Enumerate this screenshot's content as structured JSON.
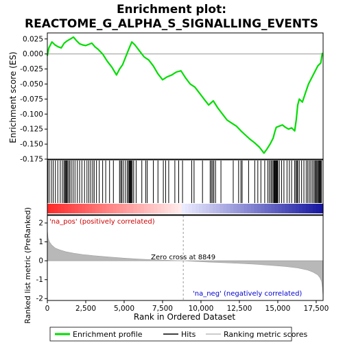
{
  "title_line1": "Enrichment plot:",
  "title_line2": "REACTOME_G_ALPHA_S_SIGNALLING_EVENTS",
  "chart_data": {
    "type": "line",
    "top_panel": {
      "ylabel": "Enrichment score (ES)",
      "ylim": [
        -0.175,
        0.035
      ],
      "yticks": [
        0.025,
        0.0,
        -0.025,
        -0.05,
        -0.075,
        -0.1,
        -0.125,
        -0.15,
        -0.175
      ],
      "ytick_labels": [
        "0.025",
        "0.000",
        "-0.025",
        "-0.050",
        "-0.075",
        "-0.100",
        "-0.125",
        "-0.150",
        "-0.175"
      ],
      "series_name": "Enrichment profile",
      "color": "#00dd00",
      "x": [
        0,
        100,
        300,
        500,
        700,
        900,
        1100,
        1300,
        1500,
        1700,
        1900,
        2100,
        2300,
        2500,
        2700,
        2900,
        3100,
        3300,
        3600,
        3900,
        4200,
        4500,
        4700,
        4900,
        5100,
        5300,
        5500,
        5700,
        6000,
        6300,
        6600,
        6900,
        7200,
        7500,
        7800,
        8100,
        8400,
        8700,
        9000,
        9300,
        9600,
        9900,
        10200,
        10500,
        10800,
        11100,
        11400,
        11700,
        12000,
        12300,
        12600,
        12900,
        13200,
        13500,
        13800,
        14100,
        14300,
        14500,
        14700,
        14800,
        14900,
        15100,
        15300,
        15500,
        15700,
        15900,
        16100,
        16200,
        16300,
        16400,
        16600,
        16800,
        17000,
        17200,
        17400,
        17600,
        17800,
        17900
      ],
      "y": [
        -0.003,
        0.01,
        0.02,
        0.015,
        0.012,
        0.01,
        0.018,
        0.022,
        0.025,
        0.028,
        0.022,
        0.017,
        0.015,
        0.014,
        0.016,
        0.018,
        0.012,
        0.008,
        0.0,
        -0.012,
        -0.022,
        -0.035,
        -0.025,
        -0.018,
        -0.005,
        0.008,
        0.02,
        0.015,
        0.005,
        -0.005,
        -0.01,
        -0.02,
        -0.033,
        -0.043,
        -0.038,
        -0.035,
        -0.03,
        -0.028,
        -0.04,
        -0.05,
        -0.055,
        -0.065,
        -0.075,
        -0.085,
        -0.078,
        -0.09,
        -0.1,
        -0.11,
        -0.115,
        -0.12,
        -0.128,
        -0.135,
        -0.142,
        -0.148,
        -0.155,
        -0.165,
        -0.158,
        -0.15,
        -0.14,
        -0.13,
        -0.122,
        -0.12,
        -0.118,
        -0.122,
        -0.125,
        -0.123,
        -0.128,
        -0.11,
        -0.085,
        -0.075,
        -0.08,
        -0.065,
        -0.05,
        -0.04,
        -0.03,
        -0.02,
        -0.015,
        0.002
      ]
    },
    "middle_panel": {
      "name": "Hits",
      "hit_ranks": [
        30,
        120,
        260,
        380,
        520,
        680,
        840,
        980,
        1080,
        1150,
        1200,
        1250,
        1300,
        1380,
        1460,
        1560,
        1680,
        1800,
        1950,
        2100,
        2250,
        2420,
        2580,
        2700,
        2820,
        2950,
        3050,
        3200,
        3380,
        3600,
        3800,
        4050,
        4300,
        4700,
        4780,
        4850,
        4950,
        5080,
        5200,
        5280,
        5330,
        5380,
        5420,
        5470,
        5530,
        5620,
        5780,
        6150,
        6400,
        6500,
        6900,
        7200,
        7550,
        7700,
        7900,
        8300,
        8550,
        8800,
        9400,
        9550,
        10100,
        10600,
        10680,
        10760,
        10840,
        10950,
        11300,
        12100,
        12450,
        12600,
        12680,
        13100,
        13500,
        13700,
        13900,
        14150,
        14350,
        14450,
        14550,
        14620,
        14700,
        14760,
        14800,
        14840,
        14880,
        14920,
        14960,
        15000,
        15100,
        15250,
        15400,
        15600,
        15750,
        15900,
        16100,
        16180,
        16250,
        16300,
        16400,
        16550,
        16700,
        16850,
        16950,
        17050,
        17150,
        17250,
        17350,
        17420,
        17480,
        17540,
        17600,
        17650,
        17700,
        17750,
        17800,
        17850
      ]
    },
    "bottom_panel": {
      "name": "Ranking metric scores",
      "ylabel": "Ranked list metric (PreRanked)",
      "xlabel": "Rank in Ordered Dataset",
      "ylim": [
        -2.1,
        2.4
      ],
      "yticks": [
        2,
        1,
        0,
        -1,
        -2
      ],
      "ytick_labels": [
        "2",
        "1",
        "0",
        "-1",
        "-2"
      ],
      "x": [
        0,
        50,
        150,
        300,
        500,
        800,
        1200,
        1700,
        2300,
        3000,
        4000,
        5000,
        6000,
        7000,
        8000,
        8849,
        9500,
        10500,
        11500,
        12500,
        13500,
        14500,
        15500,
        16300,
        16900,
        17300,
        17600,
        17750,
        17850,
        17900,
        17950
      ],
      "y": [
        1.65,
        1.2,
        0.98,
        0.82,
        0.68,
        0.58,
        0.48,
        0.4,
        0.33,
        0.27,
        0.2,
        0.14,
        0.09,
        0.05,
        0.02,
        0.0,
        -0.03,
        -0.07,
        -0.1,
        -0.14,
        -0.18,
        -0.24,
        -0.3,
        -0.38,
        -0.48,
        -0.6,
        -0.75,
        -0.9,
        -1.1,
        -1.4,
        -1.9
      ],
      "zero_cross_label": "Zero cross at 8849",
      "zero_cross": 8849,
      "pos_label": "'na_pos' (positively correlated)",
      "neg_label": "'na_neg' (negatively correlated)"
    },
    "xlim": [
      0,
      17950
    ],
    "xticks": [
      0,
      2500,
      5000,
      7500,
      10000,
      12500,
      15000,
      17500
    ],
    "xtick_labels": [
      "0",
      "2,500",
      "5,000",
      "7,500",
      "10,000",
      "12,500",
      "15,000",
      "17,500"
    ],
    "legend": {
      "placement": "bottom",
      "entries": [
        "Enrichment profile",
        "Hits",
        "Ranking metric scores"
      ]
    }
  }
}
